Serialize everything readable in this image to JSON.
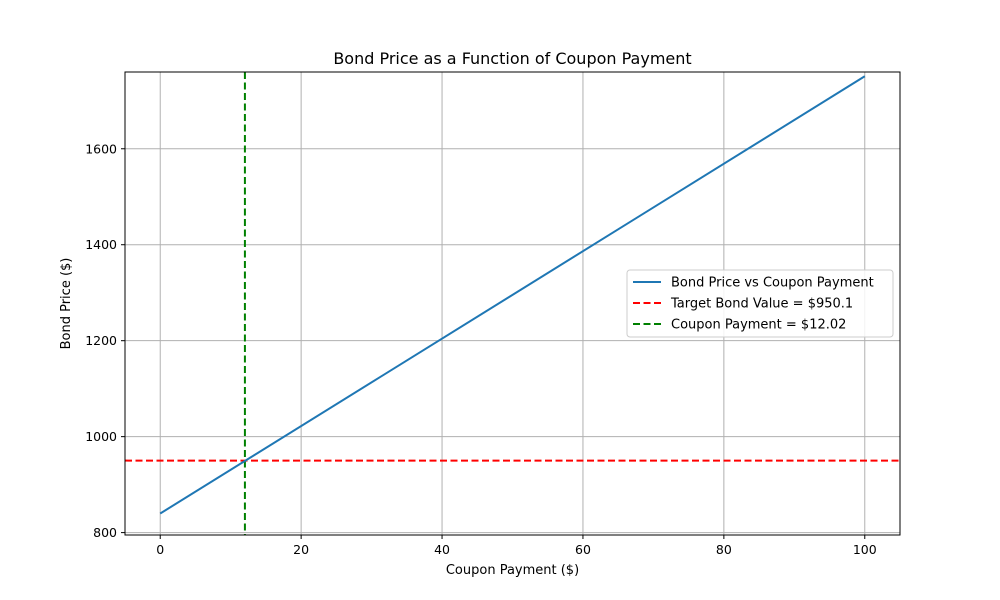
{
  "chart_data": {
    "type": "line",
    "title": "Bond Price as a Function of Coupon Payment",
    "xlabel": "Coupon Payment ($)",
    "ylabel": "Bond Price ($)",
    "xlim": [
      -5,
      105
    ],
    "ylim": [
      795,
      1760
    ],
    "x_ticks": [
      0,
      20,
      40,
      60,
      80,
      100
    ],
    "y_ticks": [
      800,
      1000,
      1200,
      1400,
      1600
    ],
    "grid": true,
    "legend_position": "center-right",
    "series": [
      {
        "name": "Bond Price vs Coupon Payment",
        "color": "#1f77b4",
        "style": "solid",
        "x": [
          0,
          100
        ],
        "y": [
          839.8,
          1751.1
        ]
      }
    ],
    "reference_lines": [
      {
        "name": "Target Bond Value = $950.1",
        "orientation": "horizontal",
        "value": 950.1,
        "color": "#ff0000",
        "style": "dashed"
      },
      {
        "name": "Coupon Payment = $12.02",
        "orientation": "vertical",
        "value": 12.02,
        "color": "#008000",
        "style": "dashed"
      }
    ]
  }
}
